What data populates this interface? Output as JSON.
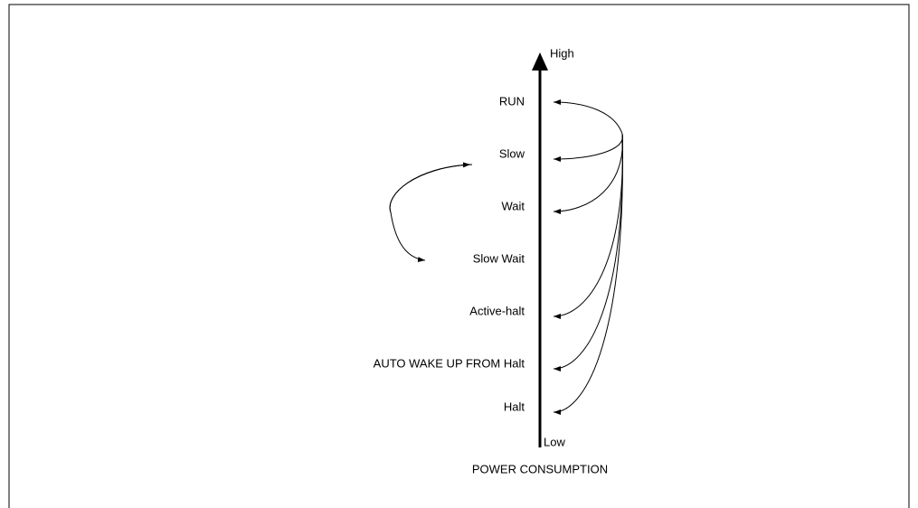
{
  "axis": {
    "high": "High",
    "low": "Low",
    "title": "POWER CONSUMPTION"
  },
  "modes": [
    "RUN",
    "Slow",
    "Wait",
    "Slow Wait",
    "Active-halt",
    "AUTO WAKE UP FROM Halt",
    "Halt"
  ]
}
